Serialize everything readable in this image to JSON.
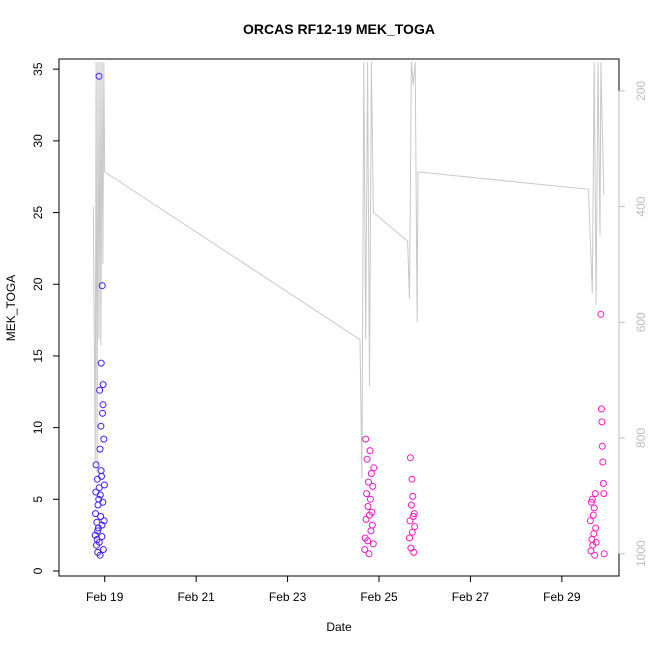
{
  "chart_data": {
    "type": "scatter",
    "title": "ORCAS RF12-19 MEK_TOGA",
    "xlabel": "Date",
    "ylabel": "MEK_TOGA",
    "xlim": [
      "2016-02-18 00:00",
      "2016-03-01 06:00"
    ],
    "ylim": [
      0,
      35.5
    ],
    "x_ticks": [
      {
        "date": "2016-02-19",
        "label": "Feb 19"
      },
      {
        "date": "2016-02-21",
        "label": "Feb 21"
      },
      {
        "date": "2016-02-23",
        "label": "Feb 23"
      },
      {
        "date": "2016-02-25",
        "label": "Feb 25"
      },
      {
        "date": "2016-02-27",
        "label": "Feb 27"
      },
      {
        "date": "2016-02-29",
        "label": "Feb 29"
      }
    ],
    "y_ticks": [
      0,
      5,
      10,
      15,
      20,
      25,
      30,
      35
    ],
    "right_axis": {
      "note": "secondary axis for grey line, inverted",
      "ticks": [
        200,
        400,
        600,
        800,
        1000
      ],
      "range": [
        1030,
        150
      ],
      "color": "#bdbdbd"
    },
    "grid": false,
    "legend": "none",
    "colors": {
      "early": "#2b1bff",
      "late": "#ff19c6",
      "line": "#c8c8c8"
    },
    "series": [
      {
        "marker": "circle",
        "color_gradient": [
          "#2b1bff",
          "#ff19c6"
        ],
        "points": [
          [
            "2016-02-18 19:00",
            2.5
          ],
          [
            "2016-02-18 19:10",
            4.0
          ],
          [
            "2016-02-18 19:20",
            5.5
          ],
          [
            "2016-02-18 19:30",
            7.4
          ],
          [
            "2016-02-18 19:40",
            1.8
          ],
          [
            "2016-02-18 19:50",
            3.4
          ],
          [
            "2016-02-18 20:00",
            2.2
          ],
          [
            "2016-02-18 20:10",
            6.4
          ],
          [
            "2016-02-18 20:20",
            1.3
          ],
          [
            "2016-02-18 20:30",
            4.6
          ],
          [
            "2016-02-18 20:40",
            3.0
          ],
          [
            "2016-02-18 20:50",
            5.0
          ],
          [
            "2016-02-18 21:00",
            34.5
          ],
          [
            "2016-02-18 21:10",
            2.0
          ],
          [
            "2016-02-18 21:20",
            12.6
          ],
          [
            "2016-02-18 21:30",
            8.5
          ],
          [
            "2016-02-18 21:40",
            5.3
          ],
          [
            "2016-02-18 21:50",
            3.8
          ],
          [
            "2016-02-18 22:00",
            10.1
          ],
          [
            "2016-02-18 22:10",
            14.5
          ],
          [
            "2016-02-18 22:20",
            6.6
          ],
          [
            "2016-02-18 22:30",
            2.4
          ],
          [
            "2016-02-18 22:40",
            19.9
          ],
          [
            "2016-02-18 22:50",
            11.0
          ],
          [
            "2016-02-18 23:00",
            4.8
          ],
          [
            "2016-02-18 23:10",
            13.0
          ],
          [
            "2016-02-18 23:20",
            1.5
          ],
          [
            "2016-02-18 23:30",
            9.2
          ],
          [
            "2016-02-18 23:40",
            3.5
          ],
          [
            "2016-02-18 23:50",
            6.0
          ],
          [
            "2016-02-18 20:15",
            2.8
          ],
          [
            "2016-02-18 21:05",
            5.8
          ],
          [
            "2016-02-18 21:35",
            1.1
          ],
          [
            "2016-02-18 22:05",
            7.0
          ],
          [
            "2016-02-18 22:35",
            3.2
          ],
          [
            "2016-02-18 23:05",
            11.6
          ],
          [
            "2016-02-24 16:30",
            1.5
          ],
          [
            "2016-02-24 16:45",
            2.3
          ],
          [
            "2016-02-24 17:00",
            9.2
          ],
          [
            "2016-02-24 17:15",
            3.6
          ],
          [
            "2016-02-24 17:30",
            5.4
          ],
          [
            "2016-02-24 17:45",
            7.8
          ],
          [
            "2016-02-24 18:00",
            2.1
          ],
          [
            "2016-02-24 18:15",
            4.5
          ],
          [
            "2016-02-24 18:30",
            6.2
          ],
          [
            "2016-02-24 18:45",
            1.2
          ],
          [
            "2016-02-24 19:00",
            3.9
          ],
          [
            "2016-02-24 19:15",
            8.4
          ],
          [
            "2016-02-24 19:30",
            5.0
          ],
          [
            "2016-02-24 19:45",
            2.8
          ],
          [
            "2016-02-24 20:00",
            6.8
          ],
          [
            "2016-02-24 20:15",
            4.1
          ],
          [
            "2016-02-24 20:30",
            3.2
          ],
          [
            "2016-02-24 20:45",
            5.9
          ],
          [
            "2016-02-24 21:00",
            1.9
          ],
          [
            "2016-02-24 21:15",
            7.2
          ],
          [
            "2016-02-25 16:00",
            2.3
          ],
          [
            "2016-02-25 16:15",
            3.5
          ],
          [
            "2016-02-25 16:30",
            7.9
          ],
          [
            "2016-02-25 16:45",
            1.6
          ],
          [
            "2016-02-25 17:00",
            4.6
          ],
          [
            "2016-02-25 17:15",
            6.4
          ],
          [
            "2016-02-25 17:30",
            2.7
          ],
          [
            "2016-02-25 17:45",
            5.2
          ],
          [
            "2016-02-25 18:00",
            3.8
          ],
          [
            "2016-02-25 18:15",
            1.3
          ],
          [
            "2016-02-25 18:30",
            4.0
          ],
          [
            "2016-02-25 18:45",
            3.1
          ],
          [
            "2016-02-29 15:00",
            3.5
          ],
          [
            "2016-02-29 15:15",
            1.4
          ],
          [
            "2016-02-29 15:30",
            4.8
          ],
          [
            "2016-02-29 15:45",
            2.2
          ],
          [
            "2016-02-29 16:00",
            5.0
          ],
          [
            "2016-02-29 16:15",
            1.8
          ],
          [
            "2016-02-29 16:30",
            3.9
          ],
          [
            "2016-02-29 16:45",
            2.6
          ],
          [
            "2016-02-29 17:00",
            4.4
          ],
          [
            "2016-02-29 17:15",
            1.1
          ],
          [
            "2016-02-29 17:30",
            5.4
          ],
          [
            "2016-02-29 17:45",
            3.0
          ],
          [
            "2016-02-29 18:00",
            2.0
          ],
          [
            "2016-02-29 20:30",
            17.9
          ],
          [
            "2016-02-29 20:45",
            11.3
          ],
          [
            "2016-02-29 21:00",
            10.4
          ],
          [
            "2016-02-29 21:15",
            8.7
          ],
          [
            "2016-02-29 21:30",
            7.6
          ],
          [
            "2016-02-29 21:45",
            6.1
          ],
          [
            "2016-02-29 22:00",
            5.4
          ],
          [
            "2016-02-29 22:15",
            1.2
          ]
        ]
      },
      {
        "type": "line",
        "axis": "right",
        "color": "#c8c8c8",
        "points": [
          [
            "2016-02-18 18:00",
            400
          ],
          [
            "2016-02-18 19:00",
            840
          ],
          [
            "2016-02-18 19:30",
            150
          ],
          [
            "2016-02-18 20:00",
            860
          ],
          [
            "2016-02-18 20:30",
            150
          ],
          [
            "2016-02-18 21:00",
            630
          ],
          [
            "2016-02-18 21:30",
            150
          ],
          [
            "2016-02-18 22:00",
            640
          ],
          [
            "2016-02-18 22:30",
            150
          ],
          [
            "2016-02-18 23:00",
            500
          ],
          [
            "2016-02-18 23:30",
            150
          ],
          [
            "2016-02-19 00:00",
            340
          ],
          [
            "2016-02-24 14:00",
            630
          ],
          [
            "2016-02-24 15:00",
            870
          ],
          [
            "2016-02-24 16:00",
            150
          ],
          [
            "2016-02-24 17:00",
            630
          ],
          [
            "2016-02-24 18:00",
            150
          ],
          [
            "2016-02-24 19:00",
            710
          ],
          [
            "2016-02-24 20:00",
            150
          ],
          [
            "2016-02-24 21:00",
            410
          ],
          [
            "2016-02-25 15:00",
            460
          ],
          [
            "2016-02-25 16:00",
            560
          ],
          [
            "2016-02-25 17:00",
            150
          ],
          [
            "2016-02-25 18:00",
            190
          ],
          [
            "2016-02-25 19:00",
            150
          ],
          [
            "2016-02-25 20:00",
            600
          ],
          [
            "2016-02-25 20:30",
            340
          ],
          [
            "2016-02-29 14:00",
            370
          ],
          [
            "2016-02-29 16:00",
            550
          ],
          [
            "2016-02-29 17:00",
            150
          ],
          [
            "2016-02-29 18:00",
            570
          ],
          [
            "2016-02-29 19:00",
            150
          ],
          [
            "2016-02-29 20:00",
            450
          ],
          [
            "2016-02-29 20:30",
            150
          ],
          [
            "2016-02-29 22:00",
            380
          ]
        ]
      }
    ]
  }
}
